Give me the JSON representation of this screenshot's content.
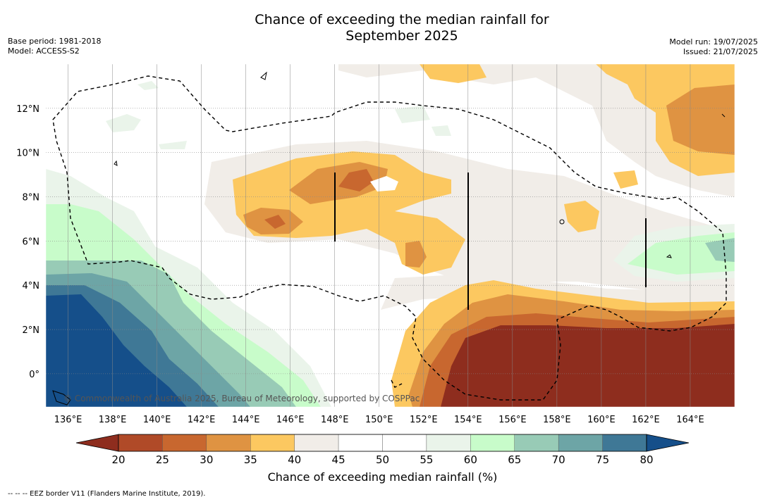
{
  "title": {
    "line1": "Chance of exceeding the median rainfall for",
    "line2": "September 2025"
  },
  "meta_left": {
    "base_period": "Base period: 1981-2018",
    "model": "Model: ACCESS-S2"
  },
  "meta_right": {
    "model_run": "Model run: 19/07/2025",
    "issued": "Issued: 21/07/2025"
  },
  "lat_labels": [
    "12°N",
    "10°N",
    "8°N",
    "6°N",
    "4°N",
    "2°N",
    "0°"
  ],
  "lat_values": [
    12,
    10,
    8,
    6,
    4,
    2,
    0
  ],
  "lon_labels": [
    "136°E",
    "138°E",
    "140°E",
    "142°E",
    "144°E",
    "146°E",
    "148°E",
    "150°E",
    "152°E",
    "154°E",
    "156°E",
    "158°E",
    "160°E",
    "162°E",
    "164°E"
  ],
  "lon_values": [
    136,
    138,
    140,
    142,
    144,
    146,
    148,
    150,
    152,
    154,
    156,
    158,
    160,
    162,
    164
  ],
  "copyright": "© Commonwealth of Australia 2025, Bureau of Meteorology, supported by COSPPac",
  "colorbar": {
    "ticks": [
      "20",
      "25",
      "30",
      "35",
      "40",
      "45",
      "50",
      "55",
      "60",
      "65",
      "70",
      "75",
      "80"
    ],
    "colors": [
      "#8e2d1e",
      "#b04a28",
      "#c8672f",
      "#df9342",
      "#fcc860",
      "#f1ede8",
      "#ffffff",
      "#ffffff",
      "#eaf4ea",
      "#c8fcca",
      "#98cbb6",
      "#6da5a6",
      "#3f7896",
      "#154f8a"
    ],
    "label": "Chance of exceeding median rainfall (%)"
  },
  "footer": "--  --  -- EEZ border V11 (Flanders Marine Institute, 2019)."
}
